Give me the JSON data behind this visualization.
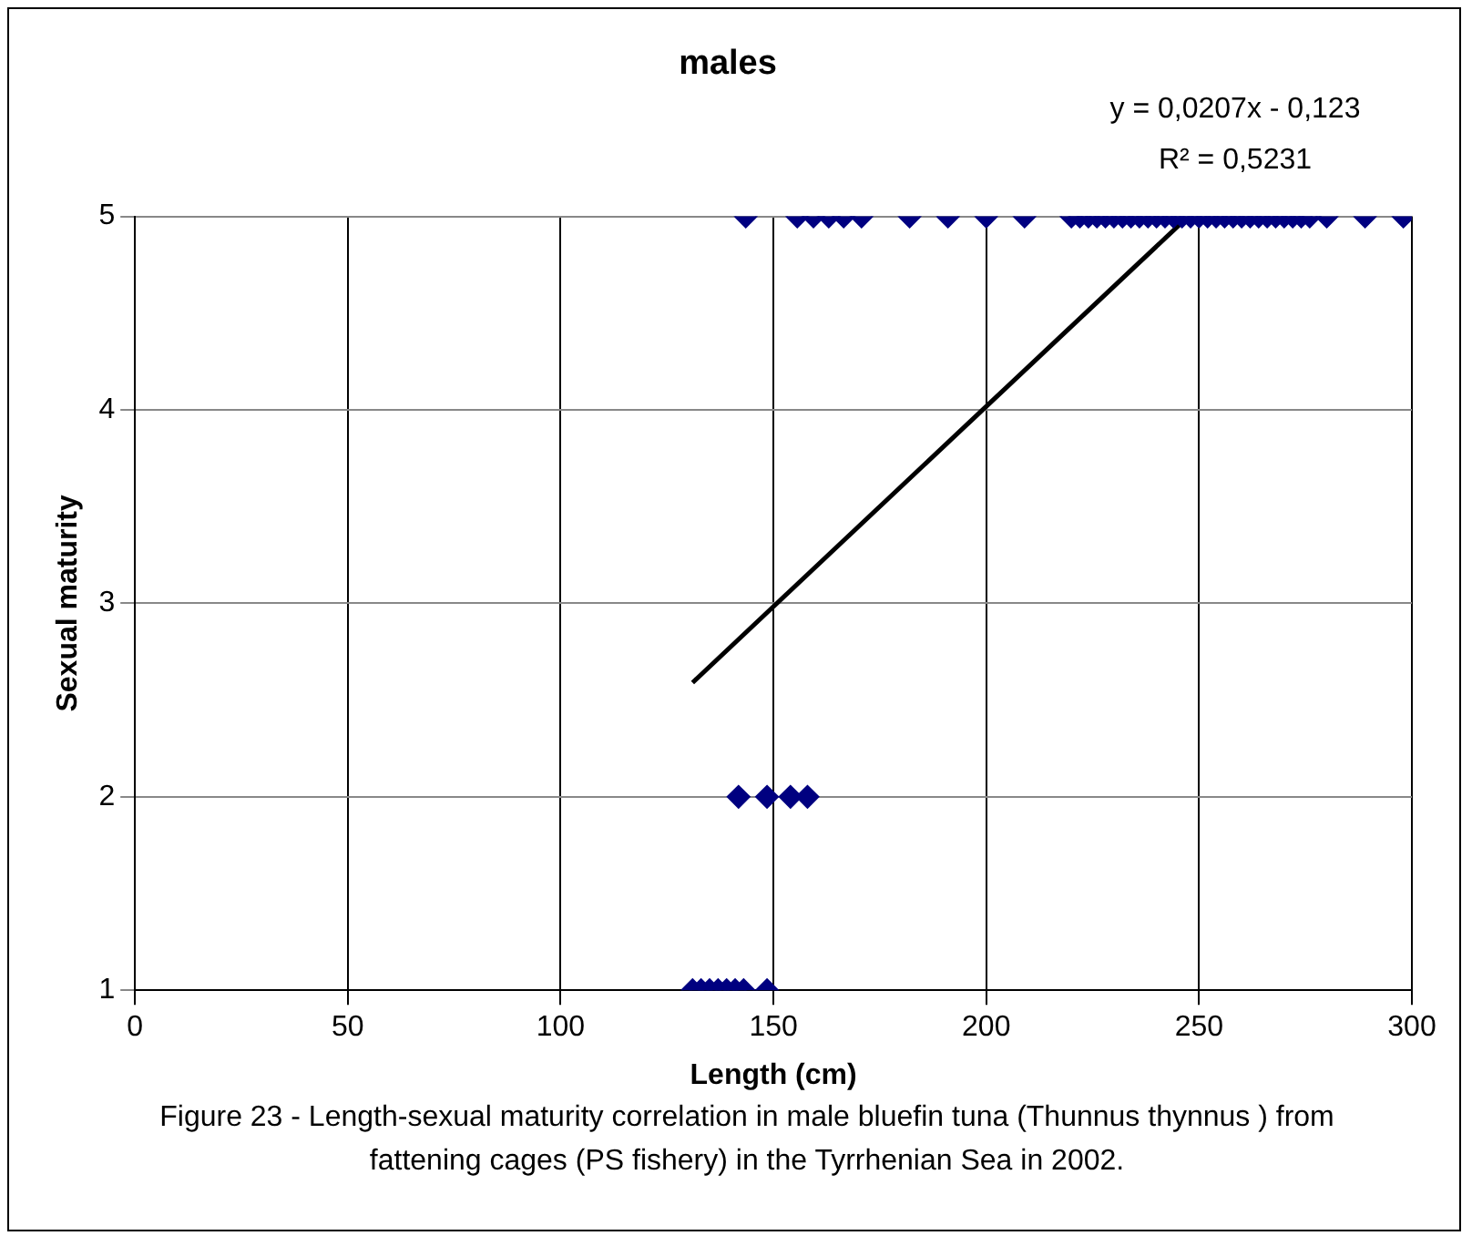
{
  "chart_data": {
    "type": "scatter",
    "title": "males",
    "xlabel": "Length (cm)",
    "ylabel": "Sexual maturity",
    "xlim": [
      0,
      300
    ],
    "xticks": [
      0,
      50,
      100,
      150,
      200,
      250,
      300
    ],
    "ylim": [
      1,
      5
    ],
    "yticks": [
      1,
      2,
      3,
      4,
      5
    ],
    "grid": true,
    "legend": false,
    "marker": "diamond",
    "series": [
      {
        "type": "scatter",
        "color": "#000080",
        "x": [
          131,
          133,
          135,
          137,
          139,
          141,
          143,
          148.5,
          141.8,
          148.5,
          154,
          158,
          143.5,
          155.6,
          159.4,
          163,
          166.5,
          170.7,
          182,
          191,
          200,
          209,
          220,
          222,
          224,
          226,
          228,
          230,
          232,
          234,
          236,
          238,
          240,
          242,
          244,
          246,
          248,
          250,
          252,
          254,
          256,
          258,
          260,
          262,
          264,
          266,
          268,
          270,
          272,
          274,
          276,
          280,
          289,
          298
        ],
        "values": [
          1,
          1,
          1,
          1,
          1,
          1,
          1,
          1,
          2,
          2,
          2,
          2,
          5,
          5,
          5,
          5,
          5,
          5,
          5,
          5,
          5,
          5,
          5,
          5,
          5,
          5,
          5,
          5,
          5,
          5,
          5,
          5,
          5,
          5,
          5,
          5,
          5,
          5,
          5,
          5,
          5,
          5,
          5,
          5,
          5,
          5,
          5,
          5,
          5,
          5,
          5,
          5,
          5,
          5
        ]
      },
      {
        "type": "line",
        "color": "#000000",
        "marker": "none",
        "x": [
          131,
          247
        ],
        "values": [
          2.59,
          4.99
        ]
      }
    ],
    "annotations": [
      "y = 0,0207x - 0,123",
      "R² = 0,5231",
      "Figure 23 - Length-sexual maturity correlation in male bluefin tuna (Thunnus thynnus ) from fattening cages (PS fishery) in the Tyrrhenian Sea in 2002."
    ]
  }
}
